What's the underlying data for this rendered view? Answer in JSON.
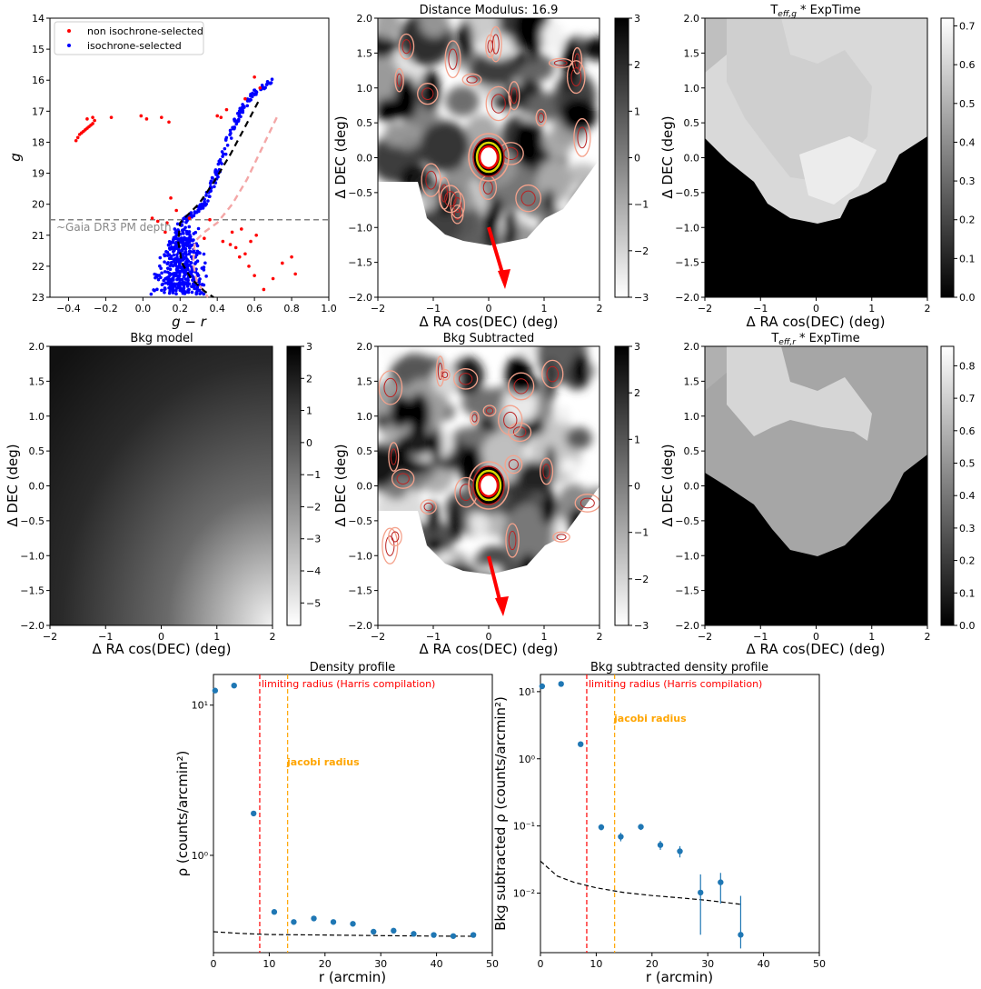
{
  "panels": {
    "cmd": {
      "xlabel": "g − r",
      "ylabel": "g",
      "xlim": [
        -0.5,
        1.0
      ],
      "ylim": [
        23,
        14
      ],
      "xticks": [
        "−0.4",
        "−0.2",
        "0.0",
        "0.2",
        "0.4",
        "0.6",
        "0.8",
        "1.0"
      ],
      "yticks": [
        "14",
        "15",
        "16",
        "17",
        "18",
        "19",
        "20",
        "21",
        "22",
        "23"
      ],
      "legend": [
        "non isochrone-selected",
        "isochrone-selected"
      ],
      "gaia_label": "~Gaia DR3 PM depth",
      "gaia_mag": 20.5
    },
    "dm": {
      "title": "Distance Modulus: 16.9",
      "xlabel": "Δ RA cos(DEC) (deg)",
      "ylabel": "Δ DEC (deg)",
      "cbar_ticks": [
        "3",
        "2",
        "1",
        "0",
        "−1",
        "−2",
        "−3"
      ]
    },
    "teffg": {
      "title_main": "T",
      "title_sub": "eff,g",
      "title_rest": " * ExpTime",
      "xlabel": "Δ RA cos(DEC) (deg)",
      "ylabel": "Δ DEC (deg)",
      "cbar_ticks": [
        "0.7",
        "0.6",
        "0.5",
        "0.4",
        "0.3",
        "0.2",
        "0.1",
        "0.0"
      ]
    },
    "bkg": {
      "title": "Bkg model",
      "xlabel": "Δ RA cos(DEC) (deg)",
      "ylabel": "Δ DEC (deg)",
      "cbar_ticks": [
        "3",
        "2",
        "1",
        "0",
        "−1",
        "−2",
        "−3",
        "−4",
        "−5"
      ]
    },
    "bkgsub": {
      "title": "Bkg Subtracted",
      "xlabel": "Δ RA cos(DEC) (deg)",
      "ylabel": "Δ DEC (deg)",
      "cbar_ticks": [
        "3",
        "2",
        "1",
        "0",
        "−1",
        "−2",
        "−3"
      ]
    },
    "teffr": {
      "title_main": "T",
      "title_sub": "eff,r",
      "title_rest": " * ExpTime",
      "xlabel": "Δ RA cos(DEC) (deg)",
      "ylabel": "Δ DEC (deg)",
      "cbar_ticks": [
        "0.8",
        "0.7",
        "0.6",
        "0.5",
        "0.4",
        "0.3",
        "0.2",
        "0.1",
        "0.0"
      ]
    },
    "map_xticks": [
      "−2",
      "−1",
      "0",
      "1",
      "2"
    ],
    "map_yticks": [
      "2.0",
      "1.5",
      "1.0",
      "0.5",
      "0.0",
      "−0.5",
      "−1.0",
      "−1.5",
      "−2.0"
    ],
    "dens": {
      "title": "Density profile",
      "xlabel": "r (arcmin)",
      "ylabel": "ρ (counts/arcmin²)",
      "xticks": [
        "0",
        "10",
        "20",
        "30",
        "40",
        "50"
      ],
      "yticks": [
        "10¹",
        "10⁰"
      ],
      "limit_label": "limiting radius (Harris compilation)",
      "jacobi_label": "jacobi radius"
    },
    "dens2": {
      "title": "Bkg subtracted density profile",
      "xlabel": "r (arcmin)",
      "ylabel": "Bkg subtracted ρ (counts/arcmin²)",
      "xticks": [
        "0",
        "10",
        "20",
        "30",
        "40",
        "50"
      ],
      "yticks": [
        "10¹",
        "10⁰",
        "10⁻¹",
        "10⁻²"
      ],
      "limit_label": "limiting radius (Harris compilation)",
      "jacobi_label": "jacobi radius"
    }
  },
  "chart_data": [
    {
      "type": "scatter",
      "title": "",
      "xlabel": "g − r",
      "ylabel": "g",
      "xlim": [
        -0.5,
        1.0
      ],
      "ylim": [
        23,
        14
      ],
      "series": [
        {
          "name": "non isochrone-selected",
          "color": "#ff0000",
          "x": [
            -0.36,
            -0.35,
            -0.34,
            -0.33,
            -0.32,
            -0.31,
            -0.3,
            -0.29,
            -0.28,
            -0.27,
            -0.26,
            -0.3,
            -0.27,
            -0.17,
            -0.01,
            0.02,
            0.1,
            0.14,
            0.4,
            0.42,
            0.45,
            0.55,
            0.63,
            0.6,
            0.05,
            0.08,
            0.13,
            0.15,
            0.18,
            0.36,
            0.43,
            0.48,
            0.5,
            0.52,
            0.55,
            0.58,
            0.6,
            0.65,
            0.7,
            0.75,
            0.8,
            0.82,
            0.53,
            0.61,
            0.25,
            0.12,
            0.33,
            0.47,
            0.57
          ],
          "y": [
            17.95,
            17.85,
            17.75,
            17.7,
            17.65,
            17.6,
            17.55,
            17.5,
            17.45,
            17.4,
            17.3,
            17.25,
            17.2,
            17.2,
            17.15,
            17.25,
            17.2,
            17.35,
            17.15,
            17.2,
            16.95,
            16.6,
            16.25,
            15.9,
            20.45,
            20.55,
            20.6,
            19.8,
            20.2,
            20.5,
            21.2,
            20.9,
            21.4,
            21.7,
            21.6,
            21.2,
            22.3,
            22.75,
            22.4,
            21.9,
            21.7,
            22.25,
            20.8,
            21.0,
            20.45,
            20.9,
            21.1,
            21.3,
            22.0
          ]
        },
        {
          "name": "isochrone-selected",
          "color": "#0000ff",
          "description": "dense giant branch from (0.22,20.5) to (0.70,16.0) plus main-sequence turnoff cloud at g−r 0.1–0.5, g 20.7–23"
        }
      ],
      "lines": [
        {
          "name": "isochrone",
          "style": "dashed",
          "color": "#000000",
          "x": [
            0.62,
            0.55,
            0.47,
            0.38,
            0.3,
            0.24,
            0.2,
            0.19,
            0.21,
            0.26,
            0.33,
            0.38
          ],
          "y": [
            16.7,
            17.5,
            18.4,
            19.3,
            20.0,
            20.35,
            20.6,
            21.2,
            21.9,
            22.4,
            22.8,
            23.0
          ]
        },
        {
          "name": "offset isochrone",
          "style": "dashed",
          "color": "#f4a6a6",
          "x": [
            0.72,
            0.64,
            0.56,
            0.48,
            0.4,
            0.33,
            0.28,
            0.27,
            0.29,
            0.35
          ],
          "y": [
            17.2,
            18.2,
            19.2,
            20.0,
            20.6,
            20.9,
            21.2,
            21.9,
            22.5,
            23.0
          ]
        },
        {
          "name": "~Gaia DR3 PM depth",
          "style": "dashed",
          "color": "#808080",
          "y": 20.5
        }
      ],
      "legend": [
        "non isochrone-selected",
        "isochrone-selected"
      ]
    },
    {
      "type": "heatmap",
      "title": "Distance Modulus: 16.9",
      "xlabel": "Δ RA cos(DEC) (deg)",
      "ylabel": "Δ DEC (deg)",
      "xlim": [
        -2,
        2
      ],
      "ylim": [
        -2,
        2
      ],
      "colorbar_range": [
        -3,
        3
      ],
      "annotations": [
        "red arrow from (0,-1.25) to (0.3,-2.0)",
        "contours around cluster at (0,0)"
      ]
    },
    {
      "type": "heatmap",
      "title": "T_eff,g * ExpTime",
      "xlabel": "Δ RA cos(DEC) (deg)",
      "ylabel": "Δ DEC (deg)",
      "xlim": [
        -2,
        2
      ],
      "ylim": [
        -2,
        2
      ],
      "colorbar_range": [
        0.0,
        0.72
      ]
    },
    {
      "type": "heatmap",
      "title": "Bkg model",
      "xlabel": "Δ RA cos(DEC) (deg)",
      "ylabel": "Δ DEC (deg)",
      "xlim": [
        -2,
        2
      ],
      "ylim": [
        -2,
        2
      ],
      "colorbar_range": [
        -5.7,
        3
      ]
    },
    {
      "type": "heatmap",
      "title": "Bkg Subtracted",
      "xlabel": "Δ RA cos(DEC) (deg)",
      "ylabel": "Δ DEC (deg)",
      "xlim": [
        -2,
        2
      ],
      "ylim": [
        -2,
        2
      ],
      "colorbar_range": [
        -3,
        3
      ]
    },
    {
      "type": "heatmap",
      "title": "T_eff,r * ExpTime",
      "xlabel": "Δ RA cos(DEC) (deg)",
      "ylabel": "Δ DEC (deg)",
      "xlim": [
        -2,
        2
      ],
      "ylim": [
        -2,
        2
      ],
      "colorbar_range": [
        0.0,
        0.86
      ]
    },
    {
      "type": "scatter",
      "title": "Density profile",
      "xlabel": "r (arcmin)",
      "ylabel": "ρ (counts/arcmin²)",
      "xlim": [
        0,
        50
      ],
      "ylim_log": [
        0.225,
        16
      ],
      "yscale": "log",
      "x": [
        0.3,
        3.7,
        7.2,
        10.9,
        14.4,
        18.0,
        21.5,
        25.0,
        28.7,
        32.3,
        35.9,
        39.5,
        43.0,
        46.6
      ],
      "y": [
        12.5,
        13.5,
        1.9,
        0.42,
        0.36,
        0.38,
        0.36,
        0.35,
        0.31,
        0.315,
        0.3,
        0.295,
        0.29,
        0.295
      ],
      "background_curve": {
        "x": [
          0,
          5,
          10,
          20,
          30,
          40,
          47
        ],
        "y": [
          0.31,
          0.302,
          0.297,
          0.295,
          0.292,
          0.29,
          0.289
        ]
      },
      "vlines": [
        {
          "x": 8.3,
          "color": "#ff0000",
          "label": "limiting radius (Harris compilation)"
        },
        {
          "x": 13.3,
          "color": "#ffa500",
          "label": "jacobi radius"
        }
      ]
    },
    {
      "type": "scatter",
      "title": "Bkg subtracted density profile",
      "xlabel": "r (arcmin)",
      "ylabel": "Bkg subtracted ρ (counts/arcmin²)",
      "xlim": [
        0,
        50
      ],
      "ylim_log": [
        0.0013,
        18
      ],
      "yscale": "log",
      "x": [
        0.3,
        3.7,
        7.2,
        10.9,
        14.4,
        18.0,
        21.5,
        25.0,
        28.7,
        32.3,
        35.9
      ],
      "y": [
        12.0,
        13.0,
        1.65,
        0.096,
        0.069,
        0.097,
        0.052,
        0.042,
        0.0102,
        0.0145,
        0.0024
      ],
      "yerr_low": [
        0.5,
        0.5,
        0.05,
        0.01,
        0.01,
        0.01,
        0.008,
        0.008,
        0.0078,
        0.0075,
        0.0009
      ],
      "yerr_high": [
        0.5,
        0.5,
        0.05,
        0.01,
        0.01,
        0.01,
        0.008,
        0.008,
        0.0088,
        0.0055,
        0.0067
      ],
      "background_curve": {
        "x": [
          0,
          3,
          6,
          10,
          15,
          20,
          25,
          30,
          36
        ],
        "y": [
          0.03,
          0.018,
          0.0145,
          0.012,
          0.0102,
          0.0092,
          0.0085,
          0.0078,
          0.0068
        ]
      },
      "vlines": [
        {
          "x": 8.3,
          "color": "#ff0000",
          "label": "limiting radius (Harris compilation)"
        },
        {
          "x": 13.3,
          "color": "#ffa500",
          "label": "jacobi radius"
        }
      ]
    }
  ]
}
